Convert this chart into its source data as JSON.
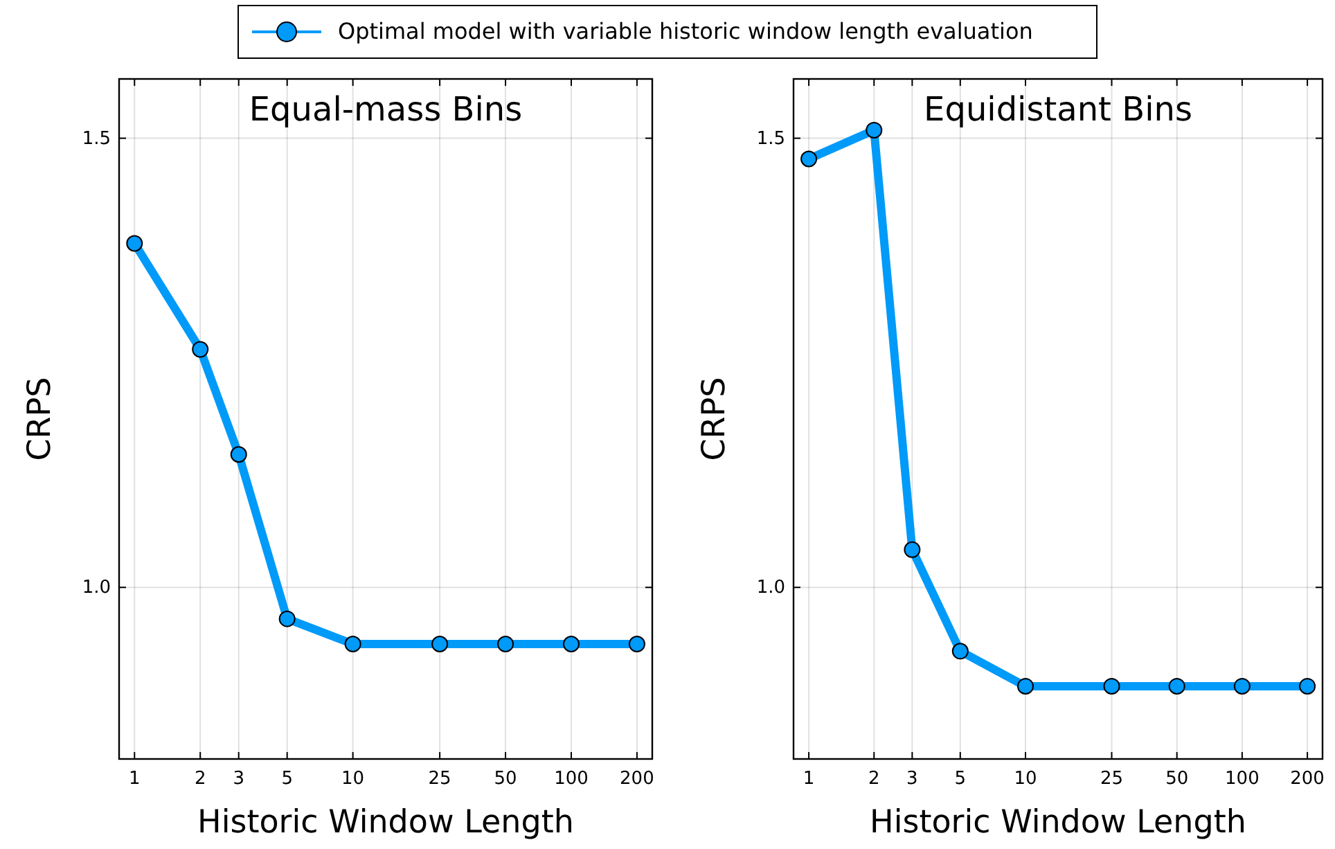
{
  "chart_data": [
    {
      "type": "line",
      "title": "Equal-mass Bins",
      "xlabel": "Historic Window Length",
      "ylabel": "CRPS",
      "log": "x",
      "x": [
        1,
        2,
        3,
        5,
        10,
        25,
        50,
        100,
        200
      ],
      "xlim": [
        0.85,
        235
      ],
      "xticks": [
        1,
        2,
        3,
        5,
        10,
        25,
        50,
        100,
        200
      ],
      "ylim": [
        0.809,
        1.566
      ],
      "yticks": [
        {
          "value": 1,
          "label": "1.0"
        },
        1.5
      ],
      "grid": true,
      "marker": "circle",
      "legend": "top",
      "series": [
        {
          "name": "Optimal model with variable historic window length evaluation",
          "color": "#009af9",
          "values": [
            1.383,
            1.265,
            1.148,
            0.965,
            0.937,
            0.937,
            0.937,
            0.937,
            0.937
          ]
        }
      ]
    },
    {
      "type": "line",
      "title": "Equidistant Bins",
      "xlabel": "Historic Window Length",
      "ylabel": "CRPS",
      "log": "x",
      "x": [
        1,
        2,
        3,
        5,
        10,
        25,
        50,
        100,
        200
      ],
      "xlim": [
        0.85,
        235
      ],
      "xticks": [
        1,
        2,
        3,
        5,
        10,
        25,
        50,
        100,
        200
      ],
      "ylim": [
        0.809,
        1.566
      ],
      "yticks": [
        {
          "value": 1,
          "label": "1.0"
        },
        1.5
      ],
      "grid": true,
      "marker": "circle",
      "series": [
        {
          "color": "#009af9",
          "values": [
            1.477,
            1.509,
            1.042,
            0.929,
            0.89,
            0.89,
            0.89,
            0.89,
            0.89
          ]
        }
      ]
    }
  ]
}
